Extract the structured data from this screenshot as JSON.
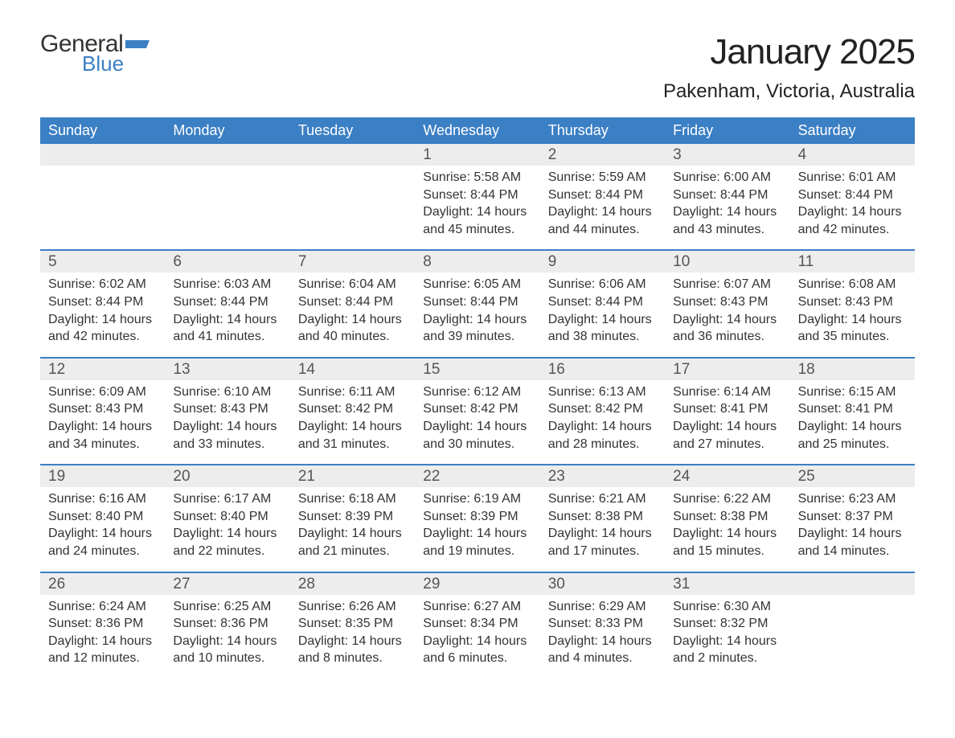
{
  "logo": {
    "general": "General",
    "blue": "Blue",
    "flag_color": "#3b7fc4"
  },
  "title": "January 2025",
  "location": "Pakenham, Victoria, Australia",
  "colors": {
    "header_bg": "#3b7fc4",
    "header_text": "#ffffff",
    "daynum_bg": "#ededed",
    "divider": "#3b7fc4",
    "body_text": "#333333",
    "page_bg": "#ffffff"
  },
  "typography": {
    "title_fontsize": 44,
    "location_fontsize": 24,
    "weekday_fontsize": 18,
    "daynum_fontsize": 19,
    "body_fontsize": 16
  },
  "layout": {
    "columns": 7,
    "rows": 5
  },
  "weekdays": [
    "Sunday",
    "Monday",
    "Tuesday",
    "Wednesday",
    "Thursday",
    "Friday",
    "Saturday"
  ],
  "weeks": [
    [
      {
        "num": "",
        "sunrise": "",
        "sunset": "",
        "daylight": ""
      },
      {
        "num": "",
        "sunrise": "",
        "sunset": "",
        "daylight": ""
      },
      {
        "num": "",
        "sunrise": "",
        "sunset": "",
        "daylight": ""
      },
      {
        "num": "1",
        "sunrise": "Sunrise: 5:58 AM",
        "sunset": "Sunset: 8:44 PM",
        "daylight": "Daylight: 14 hours and 45 minutes."
      },
      {
        "num": "2",
        "sunrise": "Sunrise: 5:59 AM",
        "sunset": "Sunset: 8:44 PM",
        "daylight": "Daylight: 14 hours and 44 minutes."
      },
      {
        "num": "3",
        "sunrise": "Sunrise: 6:00 AM",
        "sunset": "Sunset: 8:44 PM",
        "daylight": "Daylight: 14 hours and 43 minutes."
      },
      {
        "num": "4",
        "sunrise": "Sunrise: 6:01 AM",
        "sunset": "Sunset: 8:44 PM",
        "daylight": "Daylight: 14 hours and 42 minutes."
      }
    ],
    [
      {
        "num": "5",
        "sunrise": "Sunrise: 6:02 AM",
        "sunset": "Sunset: 8:44 PM",
        "daylight": "Daylight: 14 hours and 42 minutes."
      },
      {
        "num": "6",
        "sunrise": "Sunrise: 6:03 AM",
        "sunset": "Sunset: 8:44 PM",
        "daylight": "Daylight: 14 hours and 41 minutes."
      },
      {
        "num": "7",
        "sunrise": "Sunrise: 6:04 AM",
        "sunset": "Sunset: 8:44 PM",
        "daylight": "Daylight: 14 hours and 40 minutes."
      },
      {
        "num": "8",
        "sunrise": "Sunrise: 6:05 AM",
        "sunset": "Sunset: 8:44 PM",
        "daylight": "Daylight: 14 hours and 39 minutes."
      },
      {
        "num": "9",
        "sunrise": "Sunrise: 6:06 AM",
        "sunset": "Sunset: 8:44 PM",
        "daylight": "Daylight: 14 hours and 38 minutes."
      },
      {
        "num": "10",
        "sunrise": "Sunrise: 6:07 AM",
        "sunset": "Sunset: 8:43 PM",
        "daylight": "Daylight: 14 hours and 36 minutes."
      },
      {
        "num": "11",
        "sunrise": "Sunrise: 6:08 AM",
        "sunset": "Sunset: 8:43 PM",
        "daylight": "Daylight: 14 hours and 35 minutes."
      }
    ],
    [
      {
        "num": "12",
        "sunrise": "Sunrise: 6:09 AM",
        "sunset": "Sunset: 8:43 PM",
        "daylight": "Daylight: 14 hours and 34 minutes."
      },
      {
        "num": "13",
        "sunrise": "Sunrise: 6:10 AM",
        "sunset": "Sunset: 8:43 PM",
        "daylight": "Daylight: 14 hours and 33 minutes."
      },
      {
        "num": "14",
        "sunrise": "Sunrise: 6:11 AM",
        "sunset": "Sunset: 8:42 PM",
        "daylight": "Daylight: 14 hours and 31 minutes."
      },
      {
        "num": "15",
        "sunrise": "Sunrise: 6:12 AM",
        "sunset": "Sunset: 8:42 PM",
        "daylight": "Daylight: 14 hours and 30 minutes."
      },
      {
        "num": "16",
        "sunrise": "Sunrise: 6:13 AM",
        "sunset": "Sunset: 8:42 PM",
        "daylight": "Daylight: 14 hours and 28 minutes."
      },
      {
        "num": "17",
        "sunrise": "Sunrise: 6:14 AM",
        "sunset": "Sunset: 8:41 PM",
        "daylight": "Daylight: 14 hours and 27 minutes."
      },
      {
        "num": "18",
        "sunrise": "Sunrise: 6:15 AM",
        "sunset": "Sunset: 8:41 PM",
        "daylight": "Daylight: 14 hours and 25 minutes."
      }
    ],
    [
      {
        "num": "19",
        "sunrise": "Sunrise: 6:16 AM",
        "sunset": "Sunset: 8:40 PM",
        "daylight": "Daylight: 14 hours and 24 minutes."
      },
      {
        "num": "20",
        "sunrise": "Sunrise: 6:17 AM",
        "sunset": "Sunset: 8:40 PM",
        "daylight": "Daylight: 14 hours and 22 minutes."
      },
      {
        "num": "21",
        "sunrise": "Sunrise: 6:18 AM",
        "sunset": "Sunset: 8:39 PM",
        "daylight": "Daylight: 14 hours and 21 minutes."
      },
      {
        "num": "22",
        "sunrise": "Sunrise: 6:19 AM",
        "sunset": "Sunset: 8:39 PM",
        "daylight": "Daylight: 14 hours and 19 minutes."
      },
      {
        "num": "23",
        "sunrise": "Sunrise: 6:21 AM",
        "sunset": "Sunset: 8:38 PM",
        "daylight": "Daylight: 14 hours and 17 minutes."
      },
      {
        "num": "24",
        "sunrise": "Sunrise: 6:22 AM",
        "sunset": "Sunset: 8:38 PM",
        "daylight": "Daylight: 14 hours and 15 minutes."
      },
      {
        "num": "25",
        "sunrise": "Sunrise: 6:23 AM",
        "sunset": "Sunset: 8:37 PM",
        "daylight": "Daylight: 14 hours and 14 minutes."
      }
    ],
    [
      {
        "num": "26",
        "sunrise": "Sunrise: 6:24 AM",
        "sunset": "Sunset: 8:36 PM",
        "daylight": "Daylight: 14 hours and 12 minutes."
      },
      {
        "num": "27",
        "sunrise": "Sunrise: 6:25 AM",
        "sunset": "Sunset: 8:36 PM",
        "daylight": "Daylight: 14 hours and 10 minutes."
      },
      {
        "num": "28",
        "sunrise": "Sunrise: 6:26 AM",
        "sunset": "Sunset: 8:35 PM",
        "daylight": "Daylight: 14 hours and 8 minutes."
      },
      {
        "num": "29",
        "sunrise": "Sunrise: 6:27 AM",
        "sunset": "Sunset: 8:34 PM",
        "daylight": "Daylight: 14 hours and 6 minutes."
      },
      {
        "num": "30",
        "sunrise": "Sunrise: 6:29 AM",
        "sunset": "Sunset: 8:33 PM",
        "daylight": "Daylight: 14 hours and 4 minutes."
      },
      {
        "num": "31",
        "sunrise": "Sunrise: 6:30 AM",
        "sunset": "Sunset: 8:32 PM",
        "daylight": "Daylight: 14 hours and 2 minutes."
      },
      {
        "num": "",
        "sunrise": "",
        "sunset": "",
        "daylight": ""
      }
    ]
  ]
}
